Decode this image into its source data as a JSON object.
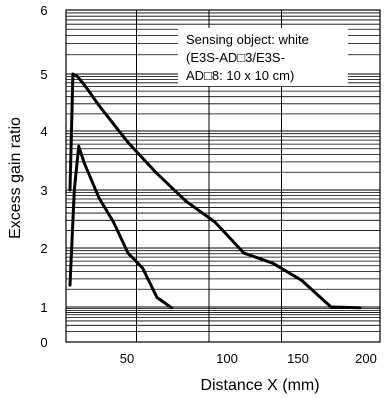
{
  "chart_data": {
    "type": "line",
    "title": "",
    "xlabel": "Distance X (mm)",
    "ylabel": "Excess gain ratio",
    "xlim": [
      0,
      200
    ],
    "ylim": [
      0,
      6
    ],
    "y_scale": "log",
    "x_ticks": [
      "50",
      "100",
      "150",
      "200"
    ],
    "y_ticks": [
      "0",
      "1",
      "2",
      "3",
      "4",
      "5",
      "6"
    ],
    "grid": true,
    "annotation": [
      "Sensing object: white",
      "(E3S-AD□3/E3S-",
      "AD□8: 10 x 10 cm)"
    ],
    "series": [
      {
        "x": [
          0,
          2,
          5,
          10,
          20,
          40,
          60,
          80,
          100,
          120,
          140,
          160,
          180,
          200
        ],
        "y": [
          3.0,
          5.0,
          4.9,
          4.6,
          4.2,
          3.6,
          3.1,
          2.6,
          2.2,
          1.8,
          1.5,
          1.2,
          1.0,
          0.95
        ]
      },
      {
        "x": [
          0,
          3,
          6,
          10,
          20,
          30,
          40,
          50,
          60,
          70
        ],
        "y": [
          1.15,
          3.0,
          3.5,
          3.2,
          2.7,
          2.2,
          1.8,
          1.4,
          1.05,
          0.95
        ]
      }
    ]
  }
}
